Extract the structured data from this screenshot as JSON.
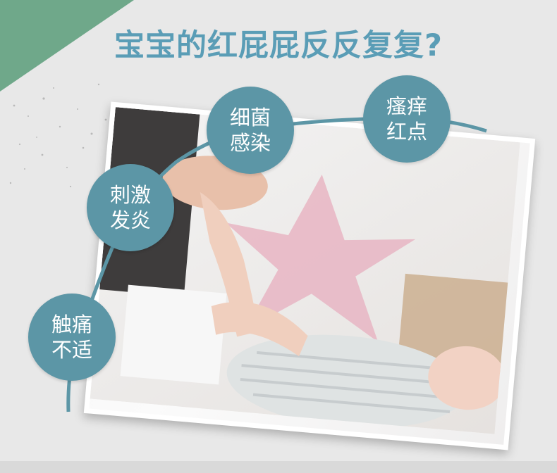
{
  "title": "宝宝的红屁屁反反复复?",
  "bubbles": [
    {
      "id": "skin-rash",
      "text": "瘙痒红点"
    },
    {
      "id": "bacterial-infection",
      "text": "细菌感染"
    },
    {
      "id": "irritation-inflammation",
      "text": "刺激发炎"
    },
    {
      "id": "touch-pain",
      "text": "触痛不适"
    }
  ],
  "colors": {
    "title": "#5a9db6",
    "bubble": "#5c96a6",
    "curve": "#5c96a6",
    "corner": "#6fa88a"
  }
}
